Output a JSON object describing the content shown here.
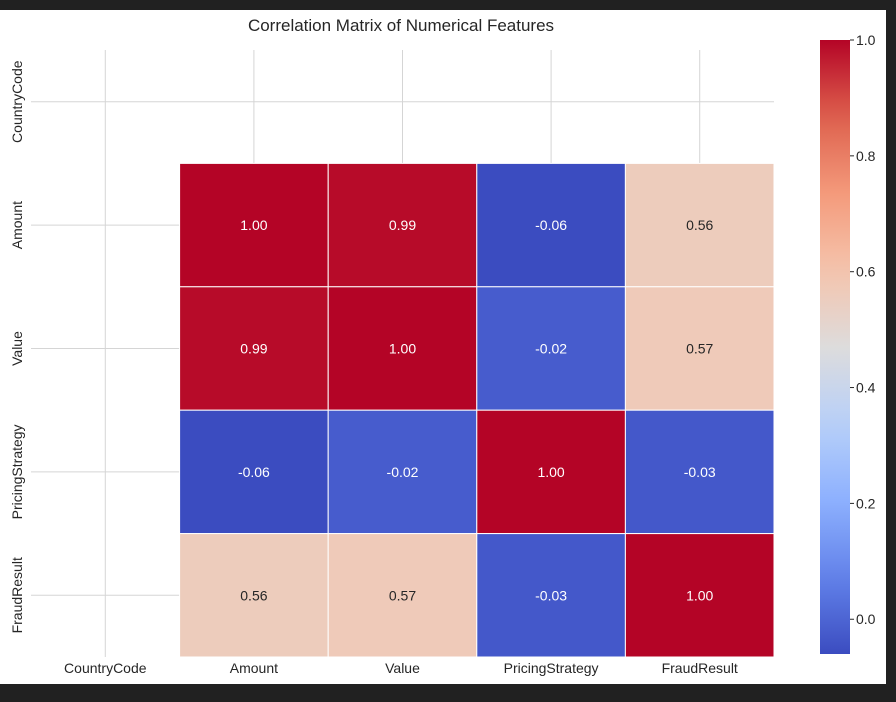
{
  "chart_data": {
    "type": "heatmap",
    "title": "Correlation Matrix of Numerical Features",
    "xlabel": "",
    "ylabel": "",
    "x_categories": [
      "CountryCode",
      "Amount",
      "Value",
      "PricingStrategy",
      "FraudResult"
    ],
    "y_categories": [
      "CountryCode",
      "Amount",
      "Value",
      "PricingStrategy",
      "FraudResult"
    ],
    "values": [
      [
        null,
        null,
        null,
        null,
        null
      ],
      [
        null,
        1.0,
        0.99,
        -0.06,
        0.56
      ],
      [
        null,
        0.99,
        1.0,
        -0.02,
        0.57
      ],
      [
        null,
        -0.06,
        -0.02,
        1.0,
        -0.03
      ],
      [
        null,
        0.56,
        0.57,
        -0.03,
        1.0
      ]
    ],
    "annotation_format": "0.00",
    "colormap": "coolwarm",
    "colorbar": {
      "min": -0.06,
      "max": 1.0,
      "ticks": [
        0.0,
        0.2,
        0.4,
        0.6,
        0.8,
        1.0
      ],
      "tick_labels": [
        "0.0",
        "0.2",
        "0.4",
        "0.6",
        "0.8",
        "1.0"
      ]
    },
    "grid": true
  },
  "colors": {
    "background": "#ffffff",
    "frame": "#212121",
    "grid": "#d5d5d5",
    "cell_border": "#ffffff"
  }
}
